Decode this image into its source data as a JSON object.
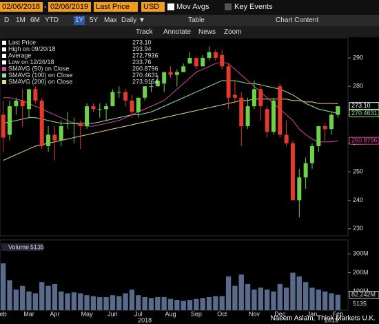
{
  "toolbar": {
    "start": "02/06/2018",
    "sep": "-",
    "end": "02/06/2019",
    "field": "Last Price",
    "currency": "USD",
    "mov_avgs": "Mov Avgs",
    "key_events": "Key Events"
  },
  "ranges": [
    "D",
    "1M",
    "6M",
    "YTD",
    "1Y",
    "5Y",
    "Max"
  ],
  "interval": "Daily ▼",
  "table": "Table",
  "chart_content": "Chart Content",
  "tools": [
    "Track",
    "Annotate",
    "News",
    "Zoom"
  ],
  "watermark": "Naeem Aslam, Think Markets U.K.",
  "chart_data": [
    {
      "type": "candlestick",
      "ylim": [
        228,
        297
      ],
      "yticks": [
        230,
        240,
        250,
        260,
        270,
        280,
        290
      ],
      "up_color": "#6fd14a",
      "down_color": "#e23a2c",
      "categories": [
        "eb",
        null,
        null,
        null,
        "Mar",
        null,
        null,
        null,
        "Apr",
        null,
        null,
        null,
        null,
        "May",
        null,
        null,
        null,
        "Jun",
        null,
        null,
        null,
        "Jul",
        null,
        null,
        null,
        null,
        "Aug",
        null,
        null,
        null,
        "Sep",
        null,
        null,
        null,
        "Oct",
        null,
        null,
        null,
        null,
        "Nov",
        null,
        null,
        null,
        "Dec",
        null,
        null,
        null,
        null,
        "Jan",
        null,
        null,
        null,
        "Feb"
      ],
      "years": [
        null,
        null,
        null,
        null,
        null,
        null,
        null,
        null,
        null,
        null,
        null,
        null,
        null,
        null,
        null,
        null,
        null,
        null,
        null,
        null,
        null,
        null,
        "2018",
        null,
        null,
        null,
        null,
        null,
        null,
        null,
        null,
        null,
        null,
        null,
        null,
        null,
        null,
        null,
        null,
        null,
        null,
        null,
        null,
        null,
        null,
        null,
        null,
        null,
        null,
        null,
        null,
        "2019",
        null
      ],
      "candles": [
        [
          270,
          275,
          257,
          262
        ],
        [
          263,
          275,
          261,
          273
        ],
        [
          273,
          276,
          270,
          275
        ],
        [
          275,
          279,
          266,
          273
        ],
        [
          272,
          279,
          269,
          279
        ],
        [
          279,
          280,
          274,
          275
        ],
        [
          275,
          276,
          258,
          259
        ],
        [
          259,
          266,
          257,
          263
        ],
        [
          263,
          266,
          254,
          261
        ],
        [
          261,
          268,
          259,
          266
        ],
        [
          267,
          271,
          265,
          267
        ],
        [
          267,
          269,
          260,
          267
        ],
        [
          267,
          268,
          258,
          266
        ],
        [
          266,
          274,
          265,
          273
        ],
        [
          273,
          274,
          271,
          272
        ],
        [
          272,
          274,
          269,
          272
        ],
        [
          272,
          274,
          268,
          273
        ],
        [
          273,
          279,
          273,
          278
        ],
        [
          278,
          280,
          276,
          278
        ],
        [
          278,
          279,
          273,
          275
        ],
        [
          275,
          277,
          269,
          271
        ],
        [
          271,
          276,
          269,
          276
        ],
        [
          276,
          280,
          275,
          280
        ],
        [
          280,
          282,
          278,
          280
        ],
        [
          280,
          284,
          280,
          282
        ],
        [
          281,
          285,
          278,
          285
        ],
        [
          285,
          287,
          283,
          284
        ],
        [
          284,
          286,
          280,
          285
        ],
        [
          285,
          288,
          285,
          287
        ],
        [
          288,
          292,
          288,
          290
        ],
        [
          290,
          290,
          286,
          287
        ],
        [
          287,
          291,
          287,
          290
        ],
        [
          290,
          294,
          289,
          292
        ],
        [
          292,
          293,
          289,
          290
        ],
        [
          291,
          293,
          286,
          287
        ],
        [
          287,
          288,
          272,
          276
        ],
        [
          277,
          282,
          274,
          276
        ],
        [
          276,
          278,
          259,
          266
        ],
        [
          266,
          276,
          265,
          273
        ],
        [
          273,
          282,
          272,
          279
        ],
        [
          279,
          280,
          268,
          273
        ],
        [
          272,
          273,
          262,
          264
        ],
        [
          264,
          276,
          263,
          275
        ],
        [
          280,
          281,
          262,
          263
        ],
        [
          263,
          268,
          259,
          260
        ],
        [
          260,
          261,
          240,
          240
        ],
        [
          240,
          251,
          234,
          248
        ],
        [
          248,
          255,
          244,
          253
        ],
        [
          253,
          260,
          251,
          259
        ],
        [
          259,
          266,
          257,
          266
        ],
        [
          266,
          267,
          261,
          265
        ],
        [
          265,
          271,
          263,
          270
        ],
        [
          270,
          273,
          269,
          273
        ]
      ],
      "series": [
        {
          "name": "SMAVG (200)  on Close",
          "color": "#e8dc78",
          "values": [
            254,
            255,
            256,
            257,
            258,
            259,
            259.5,
            260,
            260.5,
            261,
            261.5,
            262,
            262.5,
            263,
            263.5,
            264,
            264.5,
            265,
            265.5,
            266,
            266.5,
            267,
            267.5,
            268,
            268.5,
            269,
            269.5,
            270,
            270.5,
            271,
            271.5,
            272,
            272.5,
            273,
            273.5,
            274,
            274.5,
            275,
            275,
            275.5,
            275.5,
            275.5,
            275.5,
            275.5,
            275.5,
            275,
            275,
            274.5,
            274.5,
            274,
            274,
            274,
            273.9
          ]
        },
        {
          "name": "SMAVG (100)  on Close",
          "color": "#8fe39a",
          "values": [
            267,
            267.5,
            268,
            268.5,
            269,
            269,
            268.5,
            268,
            267.5,
            267,
            267,
            267,
            267,
            267,
            267,
            267.5,
            268,
            268.5,
            269,
            269.5,
            270,
            270,
            270.5,
            271,
            272,
            273,
            274,
            275,
            276,
            277,
            278,
            279,
            280,
            281,
            282,
            282,
            282,
            281.5,
            281,
            281,
            280.5,
            280,
            279.5,
            279,
            278,
            277,
            275.5,
            274,
            273,
            272,
            271.5,
            271,
            270.5
          ]
        },
        {
          "name": "SMAVG (50)  on Close",
          "color": "#d9459b",
          "values": [
            276,
            276,
            275.5,
            275,
            274,
            273,
            272,
            271,
            270,
            269,
            268,
            267,
            266.5,
            266,
            266,
            266.5,
            267,
            267.5,
            268,
            269,
            270,
            271,
            272,
            273,
            274,
            275,
            277,
            279,
            281,
            283,
            285,
            286,
            287,
            288,
            288.5,
            288,
            286,
            284,
            282,
            280,
            278,
            276,
            274,
            272,
            270,
            268,
            265,
            263,
            261.5,
            260.5,
            260.5,
            260.5,
            260.9
          ]
        }
      ],
      "legend": [
        {
          "label": "Last Price",
          "value": {
            "value": 273.1,
            "label": "273.10"
          },
          "color": "#ffffff"
        },
        {
          "label": "High on 09/20/18",
          "value": 293.94,
          "color": "#ffffff"
        },
        {
          "label": "Average",
          "value": 272.7936,
          "color": "#ffffff"
        },
        {
          "label": "Low on 12/26/18",
          "value": 233.76,
          "color": "#ffffff"
        },
        {
          "label": "SMAVG (50)  on Close",
          "value": 260.8796,
          "color": "#d9459b"
        },
        {
          "label": "SMAVG (100)  on Close",
          "value": 270.4631,
          "color": "#8fe39a"
        },
        {
          "label": "SMAVG (200)  on Close",
          "value": 273.9154,
          "color": "#e8dc78"
        }
      ]
    },
    {
      "type": "bar",
      "title": "Volume",
      "count": 5135,
      "color": "#5a6a8a",
      "ylim": [
        0,
        360
      ],
      "yticks": [
        {
          "value": 100,
          "label": "100M"
        },
        {
          "value": 200,
          "label": "200M"
        },
        {
          "value": 300,
          "label": "300M"
        }
      ],
      "last": {
        "value": 82.242,
        "label": "82.242M"
      },
      "values": [
        250,
        160,
        110,
        130,
        100,
        90,
        150,
        130,
        140,
        100,
        90,
        95,
        90,
        80,
        75,
        70,
        70,
        80,
        75,
        90,
        110,
        80,
        70,
        65,
        70,
        70,
        60,
        55,
        50,
        55,
        60,
        65,
        70,
        75,
        75,
        180,
        130,
        190,
        140,
        110,
        120,
        110,
        100,
        140,
        120,
        200,
        180,
        150,
        120,
        110,
        100,
        90,
        82
      ]
    }
  ]
}
